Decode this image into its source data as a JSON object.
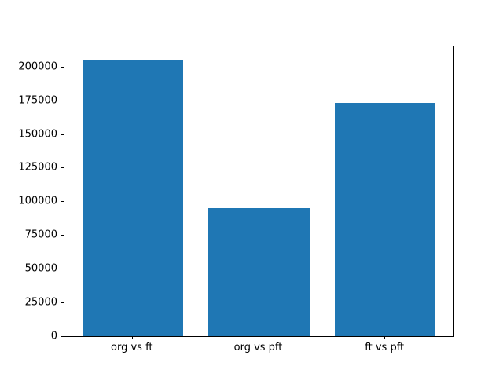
{
  "chart_data": {
    "type": "bar",
    "categories": [
      "org vs ft",
      "org vs pft",
      "ft vs pft"
    ],
    "values": [
      205000,
      95000,
      173000
    ],
    "title": "",
    "xlabel": "",
    "ylabel": "",
    "ylim": [
      0,
      215000
    ],
    "yticks": [
      0,
      25000,
      50000,
      75000,
      100000,
      125000,
      150000,
      175000,
      200000
    ],
    "ytick_labels": [
      "0",
      "25000",
      "50000",
      "75000",
      "100000",
      "125000",
      "150000",
      "175000",
      "200000"
    ],
    "bar_color": "#1f77b4",
    "axis_color": "#000000",
    "background_color": "#ffffff",
    "grid": false,
    "legend": null,
    "bar_relative_width": 0.8
  }
}
